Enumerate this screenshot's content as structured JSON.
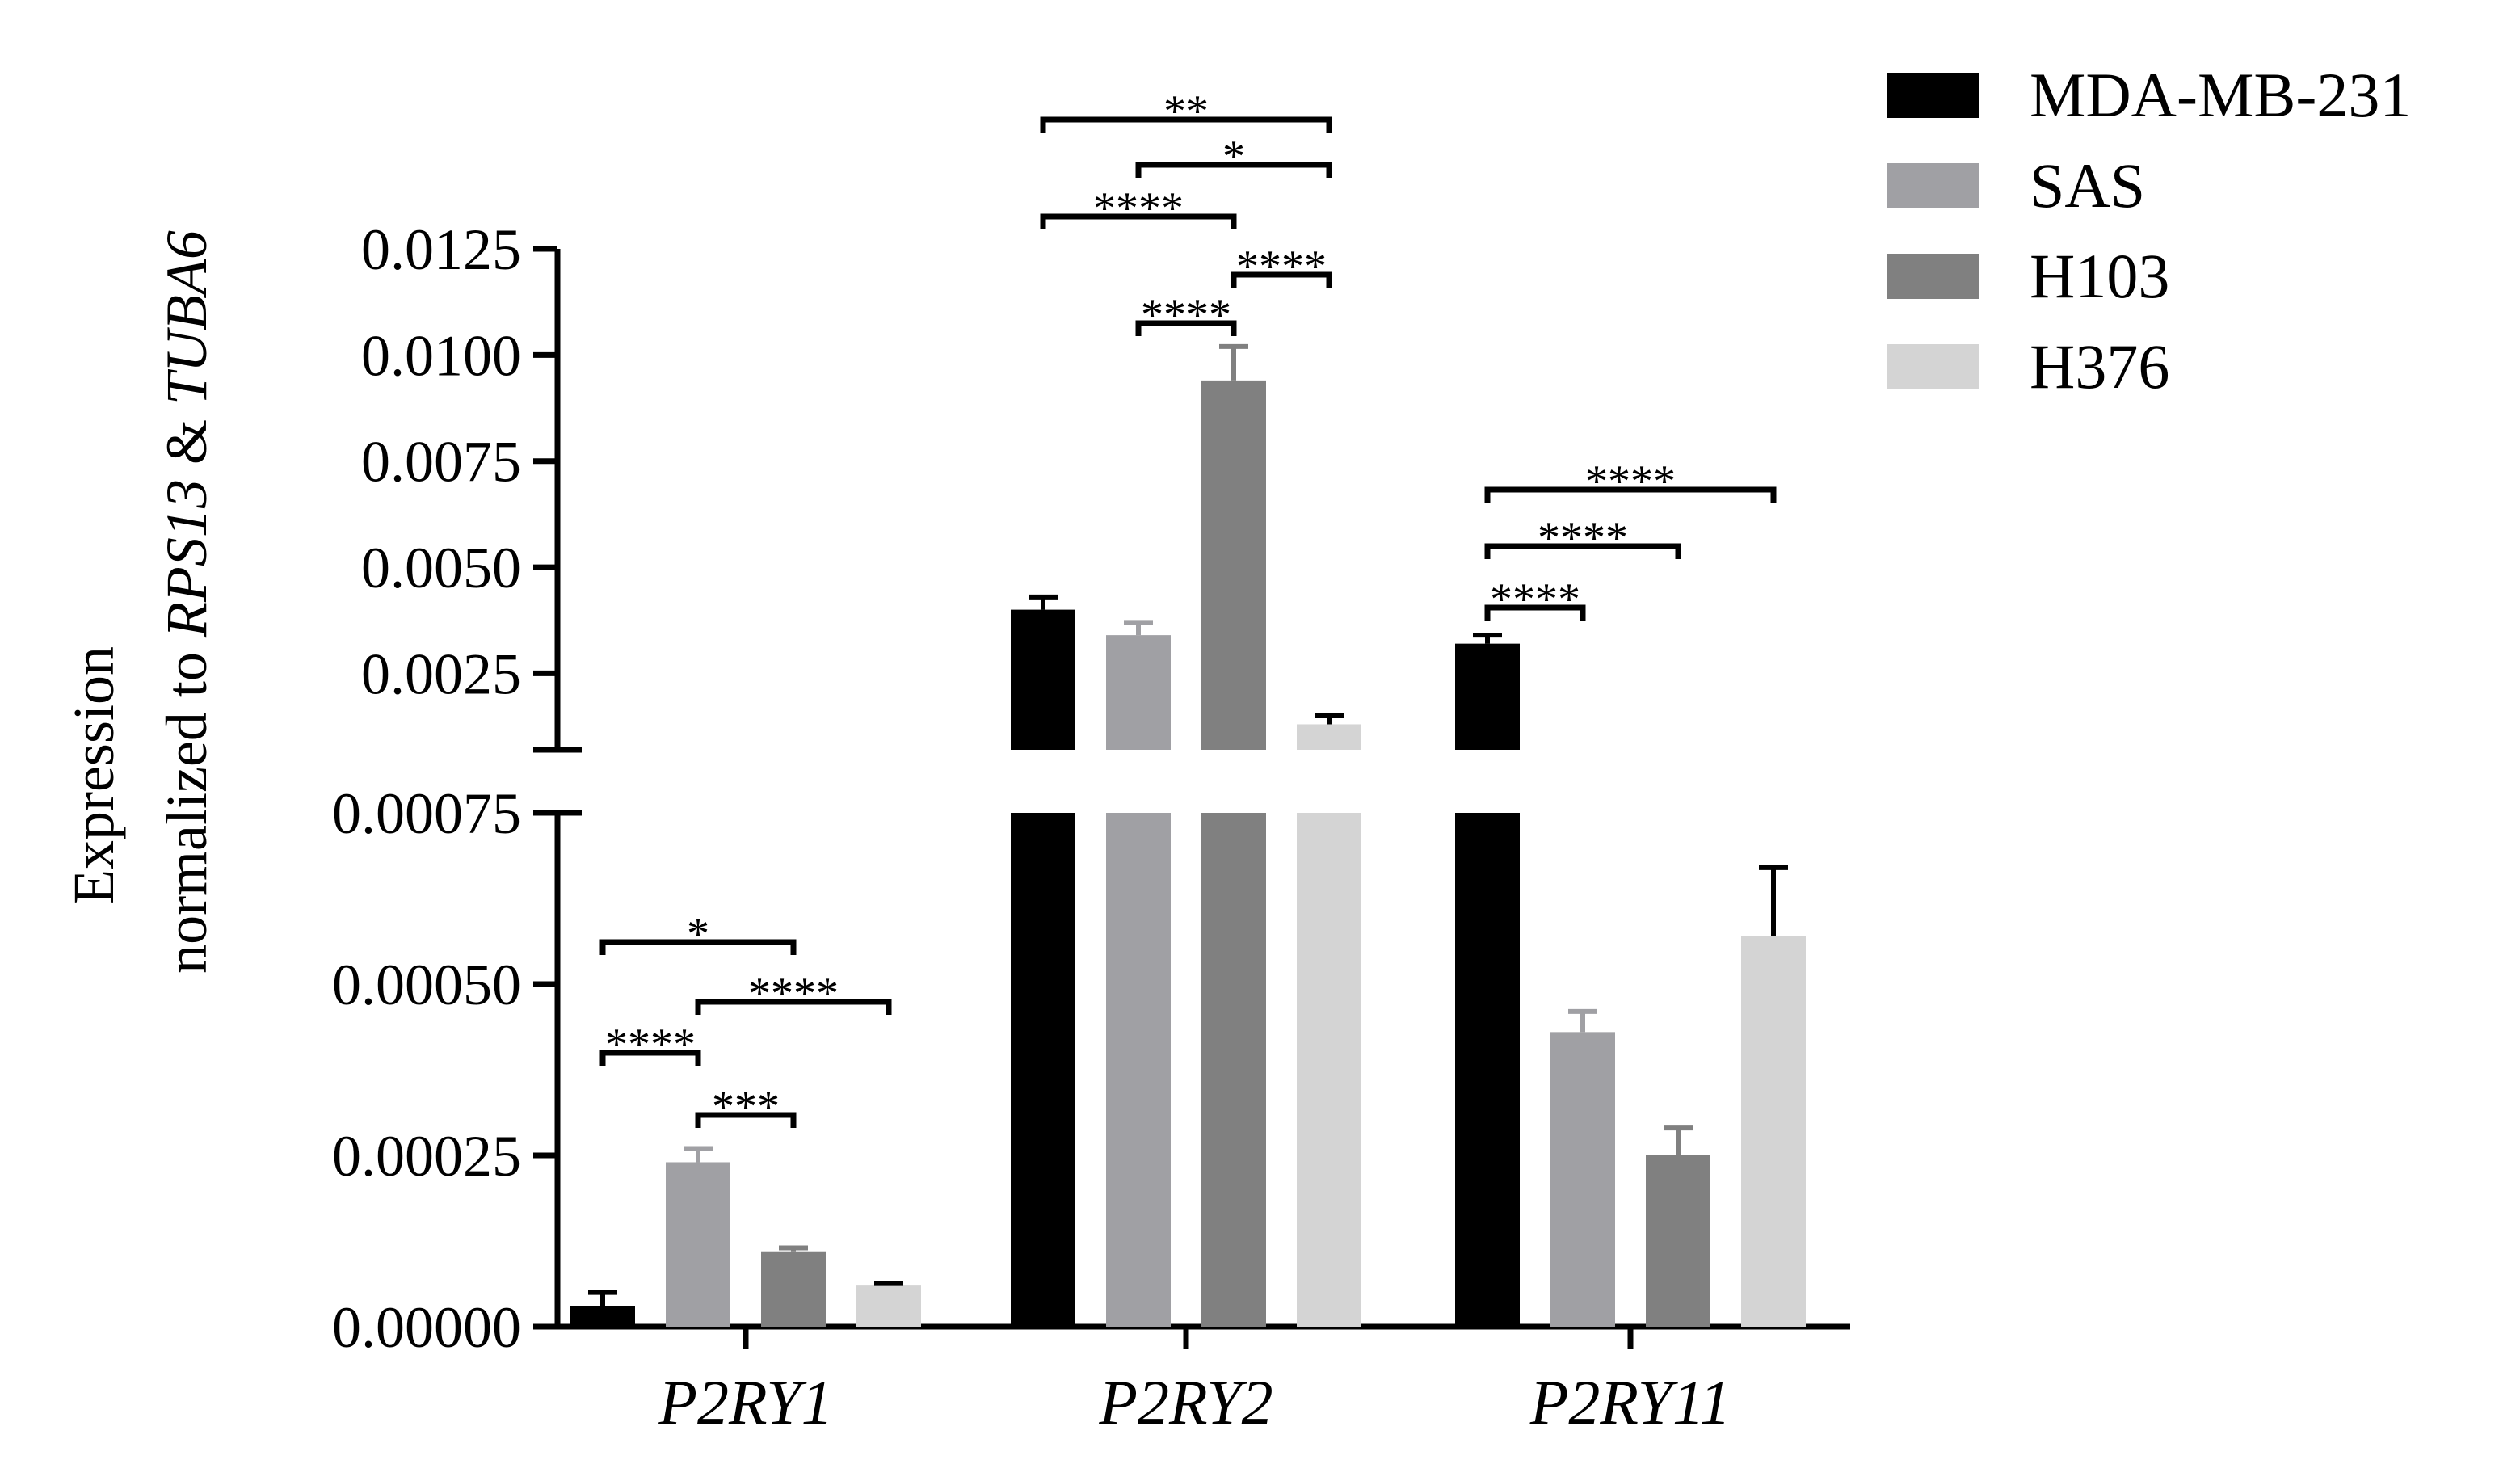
{
  "chart_data": {
    "type": "bar",
    "broken_axis": true,
    "ylabel_line1": "Expression",
    "ylabel_line2_prefix": "normalized to ",
    "ylabel_gene1": "RPS13",
    "ylabel_amp": " & ",
    "ylabel_gene2": "TUBA6",
    "categories": [
      "P2RY1",
      "P2RY2",
      "P2RY11"
    ],
    "series": [
      {
        "name": "MDA-MB-231",
        "color": "#000000",
        "values": [
          3e-05,
          0.004,
          0.0032
        ],
        "errors": [
          2e-05,
          0.0003,
          0.0002
        ]
      },
      {
        "name": "SAS",
        "color": "#a0a0a4",
        "values": [
          0.00024,
          0.0034,
          0.00043
        ],
        "errors": [
          2e-05,
          0.0003,
          3e-05
        ]
      },
      {
        "name": "H103",
        "color": "#808080",
        "values": [
          0.00011,
          0.0094,
          0.00025
        ],
        "errors": [
          5e-06,
          0.0008,
          4e-05
        ]
      },
      {
        "name": "H376",
        "color": "#d4d4d4",
        "values": [
          6e-05,
          0.0013,
          0.00057
        ],
        "errors": [
          3e-06,
          0.0002,
          0.0001
        ]
      }
    ],
    "lower_axis": {
      "ylim": [
        0,
        0.00075
      ],
      "ticks": [
        "0.00000",
        "0.00025",
        "0.00050",
        "0.00075"
      ]
    },
    "upper_axis": {
      "ylim": [
        0.0007,
        0.0125
      ],
      "ticks": [
        "0.0025",
        "0.0050",
        "0.0075",
        "0.0100",
        "0.0125"
      ]
    },
    "significance": [
      {
        "category": 0,
        "from": 0,
        "to": 2,
        "label": "*"
      },
      {
        "category": 0,
        "from": 1,
        "to": 3,
        "label": "****"
      },
      {
        "category": 0,
        "from": 0,
        "to": 1,
        "label": "****"
      },
      {
        "category": 0,
        "from": 1,
        "to": 2,
        "label": "***"
      },
      {
        "category": 1,
        "from": 0,
        "to": 3,
        "label": "**"
      },
      {
        "category": 1,
        "from": 1,
        "to": 3,
        "label": "*"
      },
      {
        "category": 1,
        "from": 0,
        "to": 2,
        "label": "****"
      },
      {
        "category": 1,
        "from": 2,
        "to": 3,
        "label": "****"
      },
      {
        "category": 1,
        "from": 1,
        "to": 2,
        "label": "****"
      },
      {
        "category": 2,
        "from": 0,
        "to": 3,
        "label": "****"
      },
      {
        "category": 2,
        "from": 0,
        "to": 2,
        "label": "****"
      },
      {
        "category": 2,
        "from": 0,
        "to": 1,
        "label": "****"
      }
    ],
    "legend_position": "top-right"
  }
}
